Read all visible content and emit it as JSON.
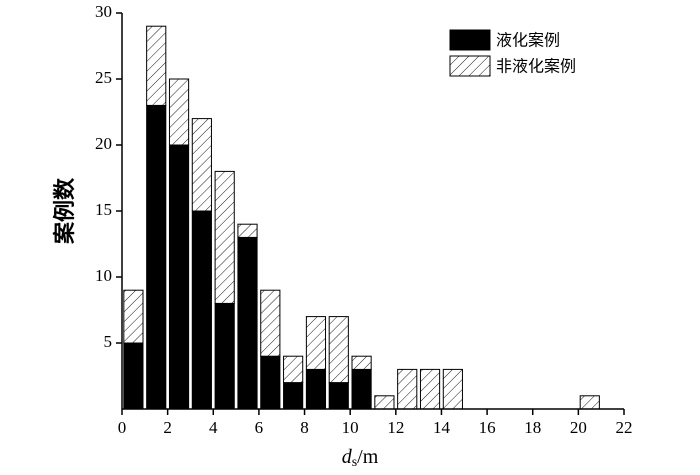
{
  "chart_data": {
    "type": "stacked_histogram",
    "x_label": {
      "var": "d",
      "sub": "s",
      "unit": "/m"
    },
    "y_label": "案例数",
    "bins": [
      0,
      1,
      2,
      3,
      4,
      5,
      6,
      7,
      8,
      9,
      10,
      11,
      12,
      13,
      14,
      15,
      16,
      17,
      18,
      19,
      20,
      21
    ],
    "series": [
      {
        "name": "液化案例",
        "color": "#000000",
        "hatch": false,
        "values": [
          5,
          23,
          20,
          15,
          8,
          13,
          4,
          2,
          3,
          2,
          3,
          0,
          0,
          0,
          0,
          0,
          0,
          0,
          0,
          0,
          0
        ]
      },
      {
        "name": "非液化案例",
        "color": "#000000",
        "hatch": true,
        "values": [
          4,
          6,
          5,
          7,
          10,
          1,
          5,
          2,
          4,
          5,
          1,
          1,
          3,
          3,
          3,
          0,
          0,
          0,
          0,
          0,
          1
        ]
      }
    ],
    "xlim": [
      0,
      22
    ],
    "xticks": [
      0,
      2,
      4,
      6,
      8,
      10,
      12,
      14,
      16,
      18,
      20,
      22
    ],
    "ylim": [
      0,
      30
    ],
    "yticks": [
      5,
      10,
      15,
      20,
      25,
      30
    ],
    "legend": "top-right"
  }
}
